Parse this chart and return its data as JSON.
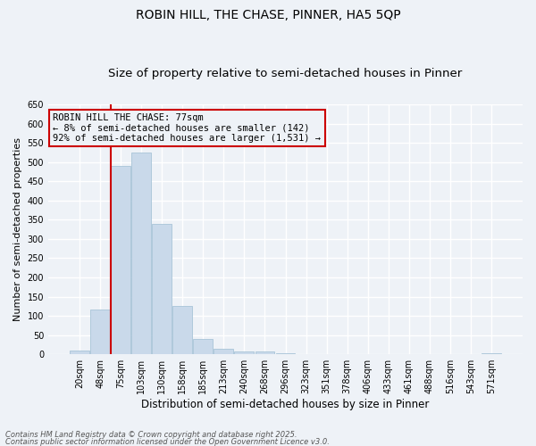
{
  "title1": "ROBIN HILL, THE CHASE, PINNER, HA5 5QP",
  "title2": "Size of property relative to semi-detached houses in Pinner",
  "xlabel": "Distribution of semi-detached houses by size in Pinner",
  "ylabel": "Number of semi-detached properties",
  "categories": [
    "20sqm",
    "48sqm",
    "75sqm",
    "103sqm",
    "130sqm",
    "158sqm",
    "185sqm",
    "213sqm",
    "240sqm",
    "268sqm",
    "296sqm",
    "323sqm",
    "351sqm",
    "378sqm",
    "406sqm",
    "433sqm",
    "461sqm",
    "488sqm",
    "516sqm",
    "543sqm",
    "571sqm"
  ],
  "values": [
    10,
    117,
    490,
    524,
    340,
    125,
    40,
    15,
    8,
    7,
    3,
    1,
    1,
    0,
    0,
    0,
    0,
    0,
    0,
    0,
    3
  ],
  "bar_color": "#c9d9ea",
  "bar_edge_color": "#a8c4d8",
  "vline_x_index": 1.5,
  "vline_color": "#cc0000",
  "annotation_text": "ROBIN HILL THE CHASE: 77sqm\n← 8% of semi-detached houses are smaller (142)\n92% of semi-detached houses are larger (1,531) →",
  "annotation_box_edge": "#cc0000",
  "ylim": [
    0,
    650
  ],
  "yticks": [
    0,
    50,
    100,
    150,
    200,
    250,
    300,
    350,
    400,
    450,
    500,
    550,
    600,
    650
  ],
  "footer1": "Contains HM Land Registry data © Crown copyright and database right 2025.",
  "footer2": "Contains public sector information licensed under the Open Government Licence v3.0.",
  "bg_color": "#eef2f7",
  "grid_color": "#ffffff",
  "title1_fontsize": 10,
  "title2_fontsize": 9.5,
  "xlabel_fontsize": 8.5,
  "ylabel_fontsize": 8,
  "annotation_fontsize": 7.5,
  "tick_fontsize": 7
}
